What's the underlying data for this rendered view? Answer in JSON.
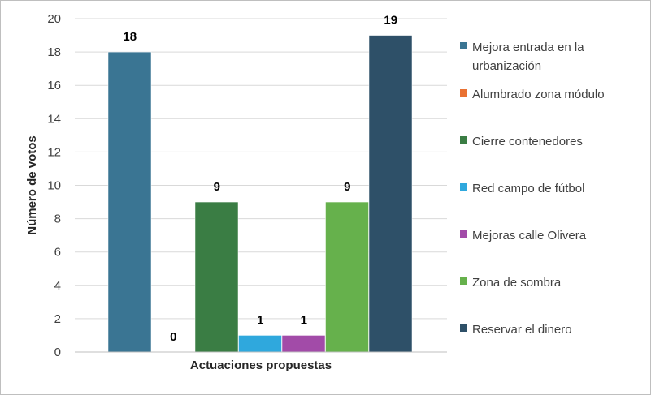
{
  "chart_data": {
    "type": "bar",
    "title": "",
    "xlabel": "Actuaciones propuestas",
    "ylabel": "Número de votos",
    "ylim": [
      0,
      20
    ],
    "yticks": [
      0,
      2,
      4,
      6,
      8,
      10,
      12,
      14,
      16,
      18,
      20
    ],
    "grid": true,
    "legend_position": "right",
    "series": [
      {
        "name": "Mejora entrada en la urbanización",
        "values": [
          18
        ],
        "color": "#3a7593"
      },
      {
        "name": "Alumbrado zona módulo",
        "values": [
          0
        ],
        "color": "#e97132"
      },
      {
        "name": "Cierre contenedores",
        "values": [
          9
        ],
        "color": "#3a7d44"
      },
      {
        "name": "Red campo de fútbol",
        "values": [
          1
        ],
        "color": "#2fa8dd"
      },
      {
        "name": "Mejoras calle Olivera",
        "values": [
          1
        ],
        "color": "#a24ba8"
      },
      {
        "name": "Zona de sombra",
        "values": [
          9
        ],
        "color": "#66b14c"
      },
      {
        "name": "Reservar el dinero",
        "values": [
          19
        ],
        "color": "#2e5068"
      }
    ],
    "data_labels": [
      "18",
      "0",
      "9",
      "1",
      "1",
      "9",
      "19"
    ]
  }
}
